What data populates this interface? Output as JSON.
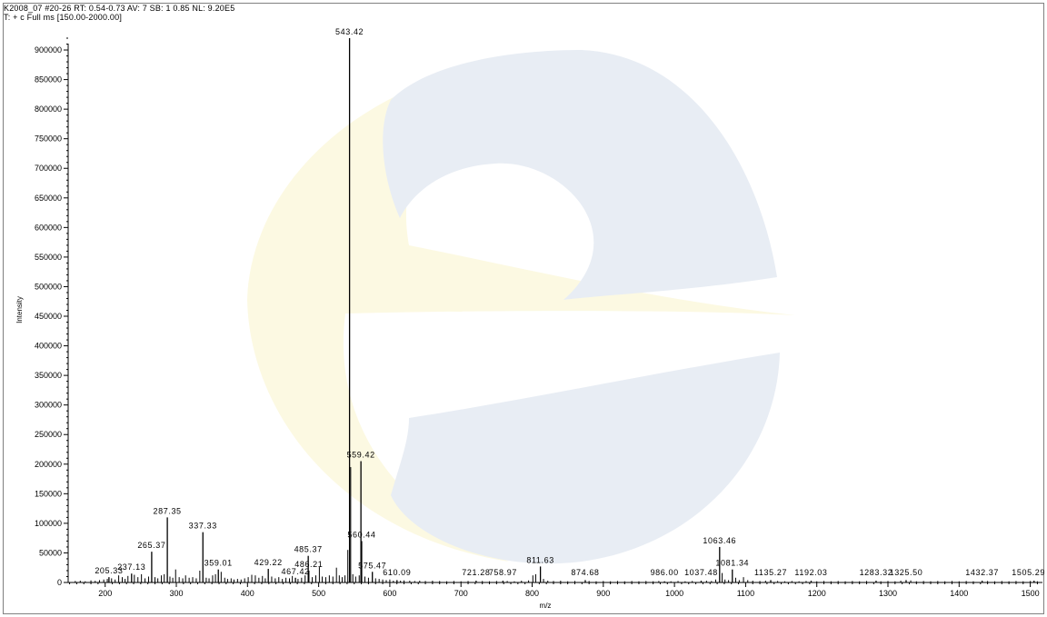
{
  "header": {
    "line1": "K2008_07 #20-26  RT: 0.54-0.73  AV: 7  SB: 1 0.85  NL: 9.20E5",
    "line2": "T: + c Full ms [150.00-2000.00]"
  },
  "colors": {
    "spectrum": "#000000",
    "watermark_blue": "#e6ecf4",
    "watermark_yellow": "#fcfae6"
  },
  "chart_data": {
    "type": "bar",
    "xlabel": "m/z",
    "ylabel": "Intensity",
    "xlim": [
      148,
      1512
    ],
    "ylim": [
      0,
      920000
    ],
    "x_ticks": [
      200,
      300,
      400,
      500,
      600,
      700,
      800,
      900,
      1000,
      1100,
      1200,
      1300,
      1400,
      1500
    ],
    "y_ticks": [
      0,
      50000,
      100000,
      150000,
      200000,
      250000,
      300000,
      350000,
      400000,
      450000,
      500000,
      550000,
      600000,
      650000,
      700000,
      750000,
      800000,
      850000,
      900000
    ],
    "peaks": [
      {
        "mz": 205.33,
        "intensity": 9000,
        "label": "205.33"
      },
      {
        "mz": 237.13,
        "intensity": 15000,
        "label": "237.13"
      },
      {
        "mz": 265.37,
        "intensity": 52000,
        "label": "265.37"
      },
      {
        "mz": 287.35,
        "intensity": 110000,
        "label": "287.35"
      },
      {
        "mz": 337.33,
        "intensity": 85000,
        "label": "337.33"
      },
      {
        "mz": 359.01,
        "intensity": 22000,
        "label": "359.01"
      },
      {
        "mz": 429.22,
        "intensity": 23000,
        "label": "429.22"
      },
      {
        "mz": 467.42,
        "intensity": 8000,
        "label": "467.42"
      },
      {
        "mz": 485.37,
        "intensity": 45000,
        "label": "485.37"
      },
      {
        "mz": 486.21,
        "intensity": 20000,
        "label": "486.21"
      },
      {
        "mz": 543.42,
        "intensity": 920000,
        "label": "543.42"
      },
      {
        "mz": 559.42,
        "intensity": 205000,
        "label": "559.42"
      },
      {
        "mz": 560.44,
        "intensity": 70000,
        "label": "560.44"
      },
      {
        "mz": 575.47,
        "intensity": 18000,
        "label": "575.47"
      },
      {
        "mz": 610.09,
        "intensity": 4000,
        "label": "610.09"
      },
      {
        "mz": 721.28,
        "intensity": 3000,
        "label": "721.28"
      },
      {
        "mz": 758.97,
        "intensity": 3000,
        "label": "758.97"
      },
      {
        "mz": 811.63,
        "intensity": 27000,
        "label": "811.63"
      },
      {
        "mz": 874.68,
        "intensity": 4000,
        "label": "874.68"
      },
      {
        "mz": 986.0,
        "intensity": 2000,
        "label": "986.00"
      },
      {
        "mz": 1037.48,
        "intensity": 3000,
        "label": "1037.48"
      },
      {
        "mz": 1063.46,
        "intensity": 60000,
        "label": "1063.46"
      },
      {
        "mz": 1081.34,
        "intensity": 22000,
        "label": "1081.34"
      },
      {
        "mz": 1135.27,
        "intensity": 4000,
        "label": "1135.27"
      },
      {
        "mz": 1192.03,
        "intensity": 3000,
        "label": "1192.03"
      },
      {
        "mz": 1283.32,
        "intensity": 3000,
        "label": "1283.32"
      },
      {
        "mz": 1325.5,
        "intensity": 4000,
        "label": "1325.50"
      },
      {
        "mz": 1432.37,
        "intensity": 3000,
        "label": "1432.37"
      },
      {
        "mz": 1505.29,
        "intensity": 3000,
        "label": "1505.29"
      }
    ],
    "minor_peaks": [
      [
        158,
        2500
      ],
      [
        165,
        3000
      ],
      [
        172,
        2000
      ],
      [
        180,
        3500
      ],
      [
        186,
        2800
      ],
      [
        192,
        4000
      ],
      [
        198,
        5000
      ],
      [
        203,
        6000
      ],
      [
        209,
        7000
      ],
      [
        214,
        5000
      ],
      [
        219,
        12000
      ],
      [
        224,
        9000
      ],
      [
        228,
        6000
      ],
      [
        232,
        11000
      ],
      [
        241,
        13000
      ],
      [
        246,
        9000
      ],
      [
        251,
        14000
      ],
      [
        256,
        7000
      ],
      [
        261,
        10000
      ],
      [
        270,
        9000
      ],
      [
        274,
        7000
      ],
      [
        279,
        12000
      ],
      [
        283,
        14000
      ],
      [
        291,
        10000
      ],
      [
        295,
        8000
      ],
      [
        299,
        22000
      ],
      [
        304,
        9000
      ],
      [
        309,
        7000
      ],
      [
        313,
        12000
      ],
      [
        318,
        8000
      ],
      [
        323,
        9000
      ],
      [
        328,
        7000
      ],
      [
        333,
        20000
      ],
      [
        342,
        8000
      ],
      [
        346,
        7000
      ],
      [
        351,
        12000
      ],
      [
        355,
        14000
      ],
      [
        363,
        18000
      ],
      [
        368,
        8000
      ],
      [
        372,
        6000
      ],
      [
        377,
        7000
      ],
      [
        381,
        5000
      ],
      [
        386,
        6000
      ],
      [
        391,
        5000
      ],
      [
        396,
        7000
      ],
      [
        401,
        9000
      ],
      [
        406,
        13000
      ],
      [
        411,
        12000
      ],
      [
        416,
        8000
      ],
      [
        421,
        11000
      ],
      [
        425,
        7000
      ],
      [
        434,
        10000
      ],
      [
        439,
        7000
      ],
      [
        444,
        9000
      ],
      [
        449,
        6000
      ],
      [
        454,
        8000
      ],
      [
        459,
        7000
      ],
      [
        463,
        11000
      ],
      [
        471,
        6000
      ],
      [
        476,
        8000
      ],
      [
        481,
        12000
      ],
      [
        491,
        9000
      ],
      [
        496,
        12000
      ],
      [
        501,
        26000
      ],
      [
        505,
        10000
      ],
      [
        510,
        9000
      ],
      [
        515,
        12000
      ],
      [
        520,
        10000
      ],
      [
        525,
        25000
      ],
      [
        529,
        12000
      ],
      [
        533,
        9000
      ],
      [
        537,
        12000
      ],
      [
        541,
        55000
      ],
      [
        545,
        195000
      ],
      [
        548,
        14000
      ],
      [
        552,
        10000
      ],
      [
        557,
        12000
      ],
      [
        565,
        10000
      ],
      [
        570,
        8000
      ],
      [
        580,
        7000
      ],
      [
        585,
        6000
      ],
      [
        590,
        5000
      ],
      [
        595,
        4000
      ],
      [
        600,
        5000
      ],
      [
        605,
        3000
      ],
      [
        615,
        3000
      ],
      [
        620,
        3500
      ],
      [
        628,
        3000
      ],
      [
        635,
        2500
      ],
      [
        642,
        3000
      ],
      [
        650,
        2500
      ],
      [
        660,
        3000
      ],
      [
        670,
        2500
      ],
      [
        680,
        2000
      ],
      [
        690,
        2500
      ],
      [
        700,
        2000
      ],
      [
        710,
        2500
      ],
      [
        730,
        2500
      ],
      [
        740,
        2000
      ],
      [
        750,
        2500
      ],
      [
        765,
        2500
      ],
      [
        775,
        2000
      ],
      [
        785,
        3000
      ],
      [
        795,
        3500
      ],
      [
        801,
        12000
      ],
      [
        805,
        14000
      ],
      [
        816,
        6000
      ],
      [
        822,
        3000
      ],
      [
        830,
        2500
      ],
      [
        840,
        3000
      ],
      [
        850,
        2000
      ],
      [
        860,
        2500
      ],
      [
        880,
        2500
      ],
      [
        890,
        2000
      ],
      [
        900,
        2500
      ],
      [
        910,
        2000
      ],
      [
        920,
        2500
      ],
      [
        930,
        2000
      ],
      [
        940,
        2500
      ],
      [
        950,
        2000
      ],
      [
        960,
        2500
      ],
      [
        970,
        2000
      ],
      [
        978,
        2500
      ],
      [
        995,
        2000
      ],
      [
        1005,
        2500
      ],
      [
        1015,
        2000
      ],
      [
        1025,
        2500
      ],
      [
        1045,
        3000
      ],
      [
        1052,
        2500
      ],
      [
        1058,
        5000
      ],
      [
        1067,
        16000
      ],
      [
        1071,
        5000
      ],
      [
        1076,
        4000
      ],
      [
        1086,
        8000
      ],
      [
        1091,
        4000
      ],
      [
        1097,
        9000
      ],
      [
        1103,
        4000
      ],
      [
        1110,
        3000
      ],
      [
        1120,
        2500
      ],
      [
        1128,
        3000
      ],
      [
        1145,
        2500
      ],
      [
        1155,
        2000
      ],
      [
        1165,
        2500
      ],
      [
        1175,
        2000
      ],
      [
        1185,
        2500
      ],
      [
        1200,
        2000
      ],
      [
        1210,
        2500
      ],
      [
        1220,
        2000
      ],
      [
        1230,
        2500
      ],
      [
        1240,
        2000
      ],
      [
        1250,
        2500
      ],
      [
        1260,
        2000
      ],
      [
        1270,
        2500
      ],
      [
        1290,
        2000
      ],
      [
        1300,
        2500
      ],
      [
        1310,
        2000
      ],
      [
        1318,
        3000
      ],
      [
        1332,
        3500
      ],
      [
        1340,
        2000
      ],
      [
        1350,
        2500
      ],
      [
        1360,
        2000
      ],
      [
        1370,
        2500
      ],
      [
        1380,
        2000
      ],
      [
        1390,
        2500
      ],
      [
        1400,
        2000
      ],
      [
        1410,
        2500
      ],
      [
        1420,
        2000
      ],
      [
        1440,
        2500
      ],
      [
        1450,
        2000
      ],
      [
        1460,
        2500
      ],
      [
        1470,
        2000
      ],
      [
        1480,
        2500
      ],
      [
        1490,
        2000
      ],
      [
        1500,
        2500
      ],
      [
        1510,
        2000
      ]
    ]
  }
}
